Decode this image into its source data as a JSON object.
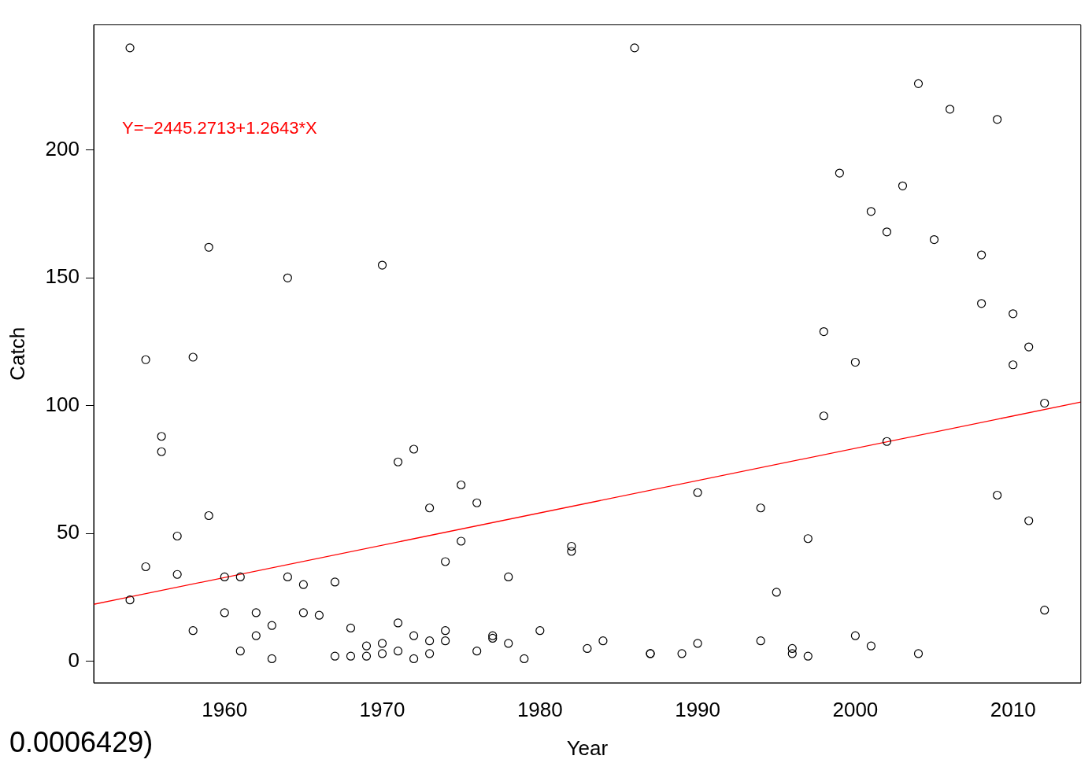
{
  "chart_data": {
    "type": "scatter",
    "xlabel": "Year",
    "ylabel": "Catch",
    "marker": "circle",
    "grid": false,
    "legend": false,
    "xlim": [
      1951.7,
      2014.3
    ],
    "ylim": [
      -8.4,
      249
    ],
    "xticks": [
      1960,
      1970,
      1980,
      1990,
      2000,
      2010
    ],
    "yticks": [
      0,
      50,
      100,
      150,
      200
    ],
    "annotations": [
      "Y=−2445.2713+1.2643*X",
      "0.0006429)"
    ],
    "series": [
      {
        "color": "#000000",
        "x": [
          1954,
          1954,
          1955,
          1955,
          1956,
          1956,
          1957,
          1957,
          1958,
          1958,
          1959,
          1959,
          1960,
          1960,
          1961,
          1961,
          1962,
          1962,
          1963,
          1963,
          1964,
          1964,
          1965,
          1965,
          1966,
          1967,
          1967,
          1968,
          1968,
          1969,
          1969,
          1970,
          1970,
          1970,
          1971,
          1971,
          1971,
          1972,
          1972,
          1972,
          1973,
          1973,
          1973,
          1974,
          1974,
          1974,
          1975,
          1975,
          1976,
          1976,
          1977,
          1977,
          1978,
          1978,
          1979,
          1980,
          1982,
          1982,
          1983,
          1984,
          1986,
          1987,
          1987,
          1989,
          1990,
          1990,
          1994,
          1994,
          1995,
          1996,
          1996,
          1997,
          1997,
          1998,
          1998,
          1999,
          2000,
          2000,
          2001,
          2001,
          2002,
          2002,
          2003,
          2004,
          2004,
          2005,
          2006,
          2008,
          2008,
          2009,
          2009,
          2010,
          2010,
          2011,
          2011,
          2012,
          2012
        ],
        "values": [
          240,
          24,
          118,
          37,
          88,
          82,
          49,
          34,
          119,
          12,
          162,
          57,
          33,
          19,
          33,
          4,
          19,
          10,
          14,
          1,
          150,
          33,
          30,
          19,
          18,
          31,
          2,
          13,
          2,
          6,
          2,
          155,
          7,
          3,
          78,
          15,
          4,
          83,
          10,
          1,
          60,
          8,
          3,
          39,
          12,
          8,
          69,
          47,
          62,
          4,
          10,
          9,
          33,
          7,
          1,
          12,
          45,
          43,
          5,
          8,
          240,
          3,
          3,
          3,
          66,
          7,
          60,
          8,
          27,
          5,
          3,
          48,
          2,
          129,
          96,
          191,
          117,
          10,
          176,
          6,
          168,
          86,
          186,
          226,
          3,
          165,
          216,
          159,
          140,
          212,
          65,
          136,
          116,
          123,
          55,
          101,
          20
        ]
      },
      {
        "type": "line",
        "color": "#ff0000",
        "x": [
          1951.7,
          2014.3
        ],
        "values": [
          22.3,
          101.4
        ],
        "marker": "none"
      }
    ]
  }
}
